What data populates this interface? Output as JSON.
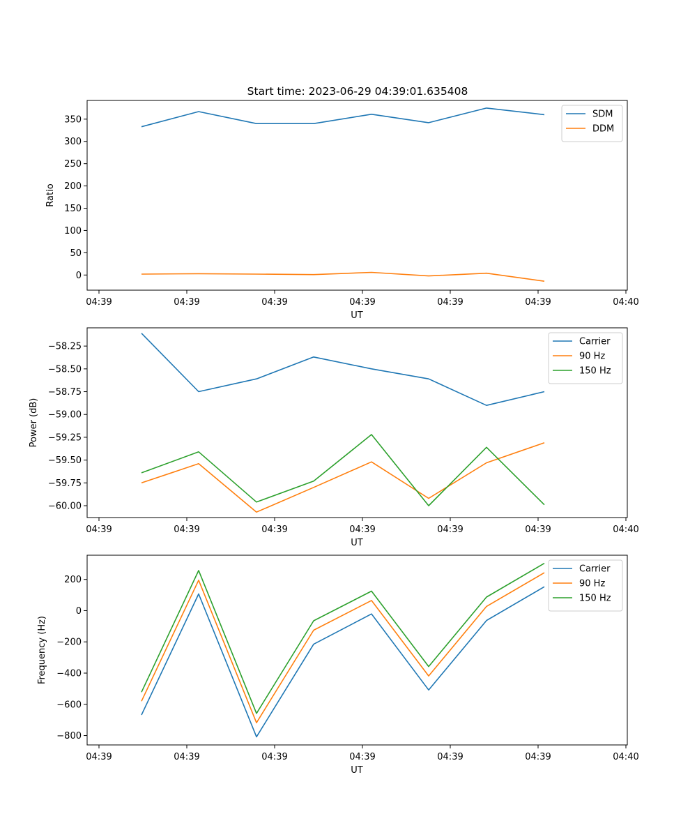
{
  "title": "Start time: 2023-06-29 04:39:01.635408",
  "chart_data": [
    {
      "type": "line",
      "title": "Start time: 2023-06-29 04:39:01.635408",
      "xlabel": "UT",
      "ylabel": "Ratio",
      "xtick_labels": [
        "04:39",
        "04:39",
        "04:39",
        "04:39",
        "04:39",
        "04:39",
        "04:40"
      ],
      "yticks": [
        0,
        50,
        100,
        150,
        200,
        250,
        300,
        350
      ],
      "ylim": [
        -34,
        392
      ],
      "grid": false,
      "legend_position": "top-right",
      "series": [
        {
          "name": "SDM",
          "color": "#1f77b4",
          "values": [
            333,
            367,
            340,
            340,
            361,
            342,
            375,
            360
          ]
        },
        {
          "name": "DDM",
          "color": "#ff7f0e",
          "values": [
            2,
            3,
            2,
            1,
            6,
            -2,
            4,
            -14
          ]
        }
      ]
    },
    {
      "type": "line",
      "title": "",
      "xlabel": "UT",
      "ylabel": "Power (dB)",
      "xtick_labels": [
        "04:39",
        "04:39",
        "04:39",
        "04:39",
        "04:39",
        "04:39",
        "04:40"
      ],
      "yticks": [
        -60.0,
        -59.75,
        -59.5,
        -59.25,
        -59.0,
        -58.75,
        -58.5,
        -58.25
      ],
      "ytick_labels": [
        "−60.00",
        "−59.75",
        "−59.50",
        "−59.25",
        "−59.00",
        "−58.75",
        "−58.50",
        "−58.25"
      ],
      "ylim": [
        -60.13,
        -58.05
      ],
      "grid": false,
      "legend_position": "top-right",
      "series": [
        {
          "name": "Carrier",
          "color": "#1f77b4",
          "values": [
            -58.11,
            -58.75,
            -58.61,
            -58.37,
            -58.5,
            -58.61,
            -58.9,
            -58.75
          ]
        },
        {
          "name": "90 Hz",
          "color": "#ff7f0e",
          "values": [
            -59.75,
            -59.54,
            -60.07,
            -59.8,
            -59.52,
            -59.92,
            -59.53,
            -59.31
          ]
        },
        {
          "name": "150 Hz",
          "color": "#2ca02c",
          "values": [
            -59.64,
            -59.41,
            -59.96,
            -59.73,
            -59.22,
            -60.0,
            -59.36,
            -59.99
          ]
        }
      ]
    },
    {
      "type": "line",
      "title": "",
      "xlabel": "UT",
      "ylabel": "Frequency (Hz)",
      "xtick_labels": [
        "04:39",
        "04:39",
        "04:39",
        "04:39",
        "04:39",
        "04:39",
        "04:40"
      ],
      "yticks": [
        -800,
        -600,
        -400,
        -200,
        0,
        200
      ],
      "ytick_labels": [
        "−800",
        "−600",
        "−400",
        "−200",
        "0",
        "200"
      ],
      "ylim": [
        -860,
        355
      ],
      "grid": false,
      "legend_position": "top-right",
      "series": [
        {
          "name": "Carrier",
          "color": "#1f77b4",
          "values": [
            -668,
            107,
            -808,
            -215,
            -21,
            -508,
            -63,
            153
          ]
        },
        {
          "name": "90 Hz",
          "color": "#ff7f0e",
          "values": [
            -580,
            195,
            -718,
            -125,
            65,
            -418,
            27,
            243
          ]
        },
        {
          "name": "150 Hz",
          "color": "#2ca02c",
          "values": [
            -522,
            257,
            -658,
            -65,
            125,
            -358,
            87,
            303
          ]
        }
      ]
    }
  ]
}
